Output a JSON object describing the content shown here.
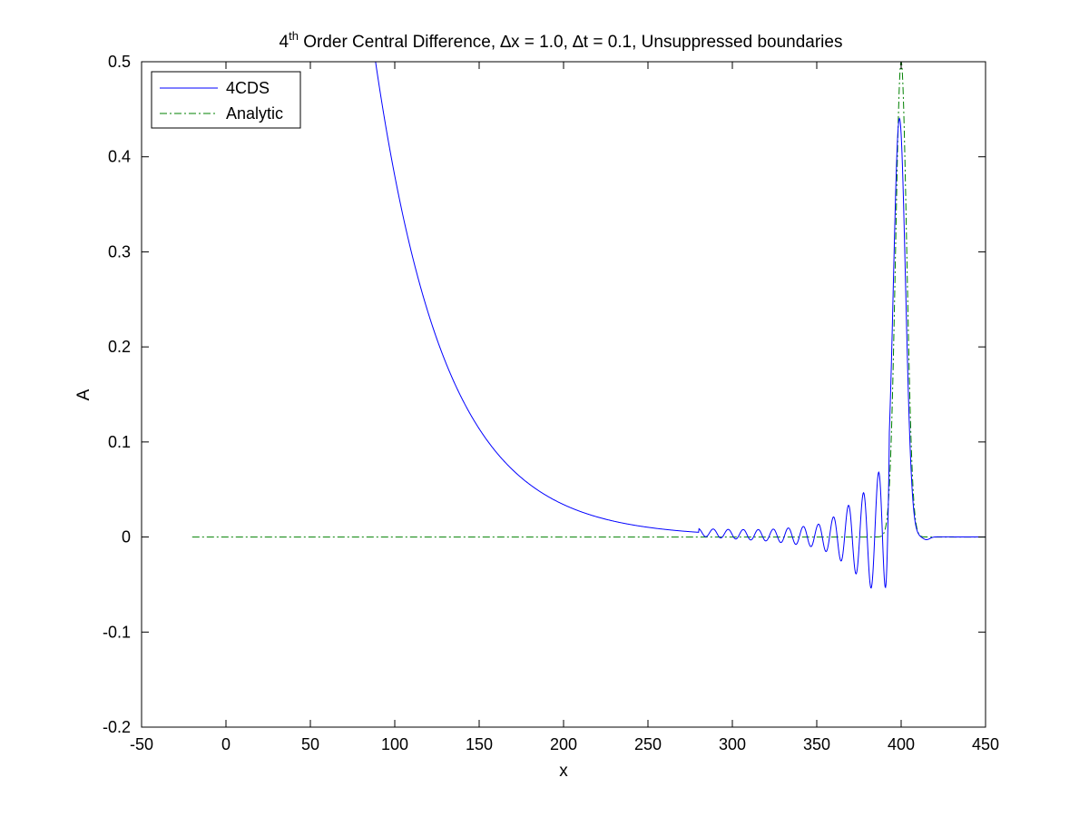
{
  "chart_data": {
    "type": "line",
    "title": {
      "prefix": "4",
      "superscript": "th",
      "suffix": " Order Central Difference, ∆x = 1.0, ∆t = 0.1, Unsuppressed boundaries"
    },
    "xlabel": "x",
    "ylabel": "A",
    "xlim": [
      -50,
      450
    ],
    "ylim": [
      -0.2,
      0.5
    ],
    "xticks": [
      -50,
      0,
      50,
      100,
      150,
      200,
      250,
      300,
      350,
      400,
      450
    ],
    "xtick_labels": [
      "-50",
      "0",
      "50",
      "100",
      "150",
      "200",
      "250",
      "300",
      "350",
      "400",
      "450"
    ],
    "yticks": [
      -0.2,
      -0.1,
      0,
      0.1,
      0.2,
      0.3,
      0.4,
      0.5
    ],
    "ytick_labels": [
      "-0.2",
      "-0.1",
      "0",
      "0.1",
      "0.2",
      "0.3",
      "0.4",
      "0.5"
    ],
    "grid": false,
    "legend": {
      "position": "top-left"
    },
    "series": [
      {
        "name": "4CDS",
        "color": "#0000ff",
        "style": "solid",
        "model": {
          "decay_region": {
            "x_start": -20,
            "x_end": 290,
            "amplitude_at_100": 0.38,
            "decay_length": 41.5
          },
          "oscillation_region": {
            "x_start": 280,
            "x_end": 393,
            "wavelength": 8.9,
            "envelope_peaks": [
              [
                280,
                0.004
              ],
              [
                320,
                0.006
              ],
              [
                350,
                0.012
              ],
              [
                370,
                0.035
              ],
              [
                385,
                0.06
              ],
              [
                391,
                0.088
              ]
            ]
          },
          "pulse": {
            "center": 399,
            "peak": 0.44,
            "width": 3.6
          },
          "tail": {
            "dip_at": 415,
            "dip_value": -0.003,
            "x_end": 450
          }
        },
        "key_points": [
          {
            "x": 84,
            "y": 0.5
          },
          {
            "x": 100,
            "y": 0.38
          },
          {
            "x": 150,
            "y": 0.16
          },
          {
            "x": 200,
            "y": 0.066
          },
          {
            "x": 250,
            "y": 0.02
          },
          {
            "x": 300,
            "y": 0.004
          },
          {
            "x": 383,
            "y": 0.063
          },
          {
            "x": 381,
            "y": -0.045
          },
          {
            "x": 391,
            "y": -0.088
          },
          {
            "x": 399,
            "y": 0.44
          },
          {
            "x": 415,
            "y": -0.003
          },
          {
            "x": 450,
            "y": 0
          }
        ]
      },
      {
        "name": "Analytic",
        "color": "#008000",
        "style": "dash-dot",
        "model": {
          "baseline": 0,
          "x_start": -20,
          "x_end": 450,
          "pulse_center": 400,
          "pulse_peak": 0.5,
          "pulse_width": 3.3
        },
        "key_points": [
          {
            "x": -20,
            "y": 0
          },
          {
            "x": 390,
            "y": 0
          },
          {
            "x": 400,
            "y": 0.5
          },
          {
            "x": 410,
            "y": 0
          },
          {
            "x": 450,
            "y": 0
          }
        ]
      }
    ]
  }
}
